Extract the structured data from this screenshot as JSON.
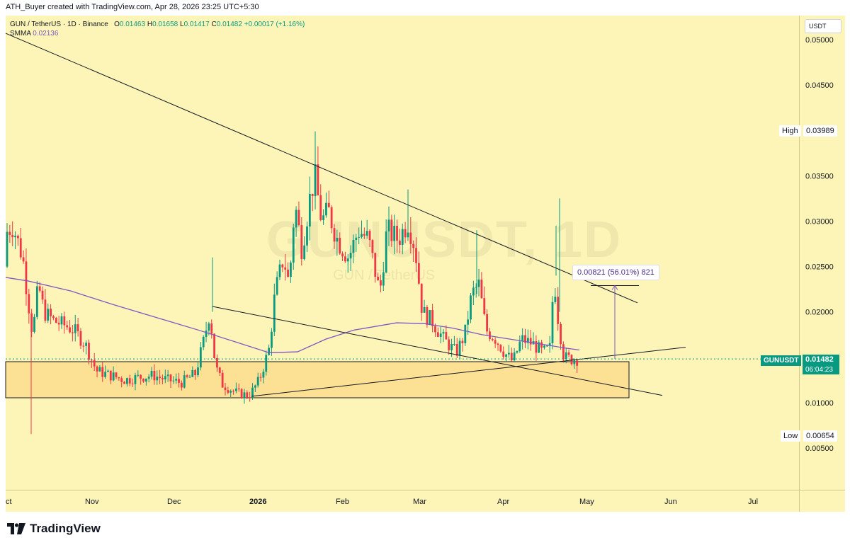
{
  "header": {
    "creator_line": "ATH_Buyer created with TradingView.com, Apr 28, 2026 23:25 UTC+5:30"
  },
  "legend": {
    "symbol_line": "GUN / TetherUS · 1D · Binance",
    "o_label": "O",
    "o_value": "0.01463",
    "h_label": "H",
    "h_value": "0.01658",
    "l_label": "L",
    "l_value": "0.01417",
    "c_label": "C",
    "c_value": "0.01482",
    "change": "+0.00017 (+1.16%)",
    "smma_label": "SMMA",
    "smma_value": "0.02136"
  },
  "currency": "USDT",
  "watermark": {
    "symbol": "GUNUSDT, 1D",
    "name": "GUN / TetherUS"
  },
  "price_scale": {
    "labels": [
      "0.05000",
      "0.04500",
      "0.03500",
      "0.03000",
      "0.02500",
      "0.02000",
      "0.01000",
      "0.00500"
    ],
    "high_label": "High",
    "high_value": "0.03989",
    "low_label": "Low",
    "low_value": "0.00654",
    "current_symbol": "GUNUSDT",
    "current_value": "0.01482",
    "countdown": "06:04:23"
  },
  "time_scale": {
    "labels": [
      "ct",
      "Nov",
      "Dec",
      "2026",
      "Feb",
      "Mar",
      "Apr",
      "May",
      "Jun",
      "Jul"
    ]
  },
  "measure": {
    "text": "0.00821 (56.01%) 821"
  },
  "footer": {
    "brand": "TradingView"
  },
  "colors": {
    "background": "#fdf5b8",
    "up": "#089981",
    "down": "#f23645",
    "smma": "#7e57c2",
    "zone": "#fbd98a"
  },
  "chart_data": {
    "type": "candlestick",
    "timeframe": "1D",
    "ylim": [
      0.003,
      0.052
    ],
    "high": 0.03989,
    "low": 0.00654,
    "last": 0.01482,
    "segments": [
      {
        "from": "Oct",
        "to": "Nov",
        "open": 0.029,
        "close": 0.0145
      },
      {
        "from": "Nov",
        "to": "Dec",
        "open": 0.0145,
        "close": 0.0125
      },
      {
        "from": "Dec",
        "to": "mid-Dec",
        "open": 0.0125,
        "close": 0.02
      },
      {
        "from": "mid-Dec",
        "to": "2026",
        "open": 0.02,
        "close": 0.011
      },
      {
        "from": "2026",
        "to": "Jan mid",
        "open": 0.011,
        "close": 0.033
      },
      {
        "from": "Jan mid",
        "to": "Feb",
        "open": 0.033,
        "close": 0.027
      },
      {
        "from": "Feb",
        "to": "Mar",
        "open": 0.027,
        "close": 0.028
      },
      {
        "from": "Mar",
        "to": "Apr",
        "open": 0.028,
        "close": 0.015
      },
      {
        "from": "Apr",
        "to": "May",
        "open": 0.015,
        "close": 0.01482
      }
    ]
  }
}
